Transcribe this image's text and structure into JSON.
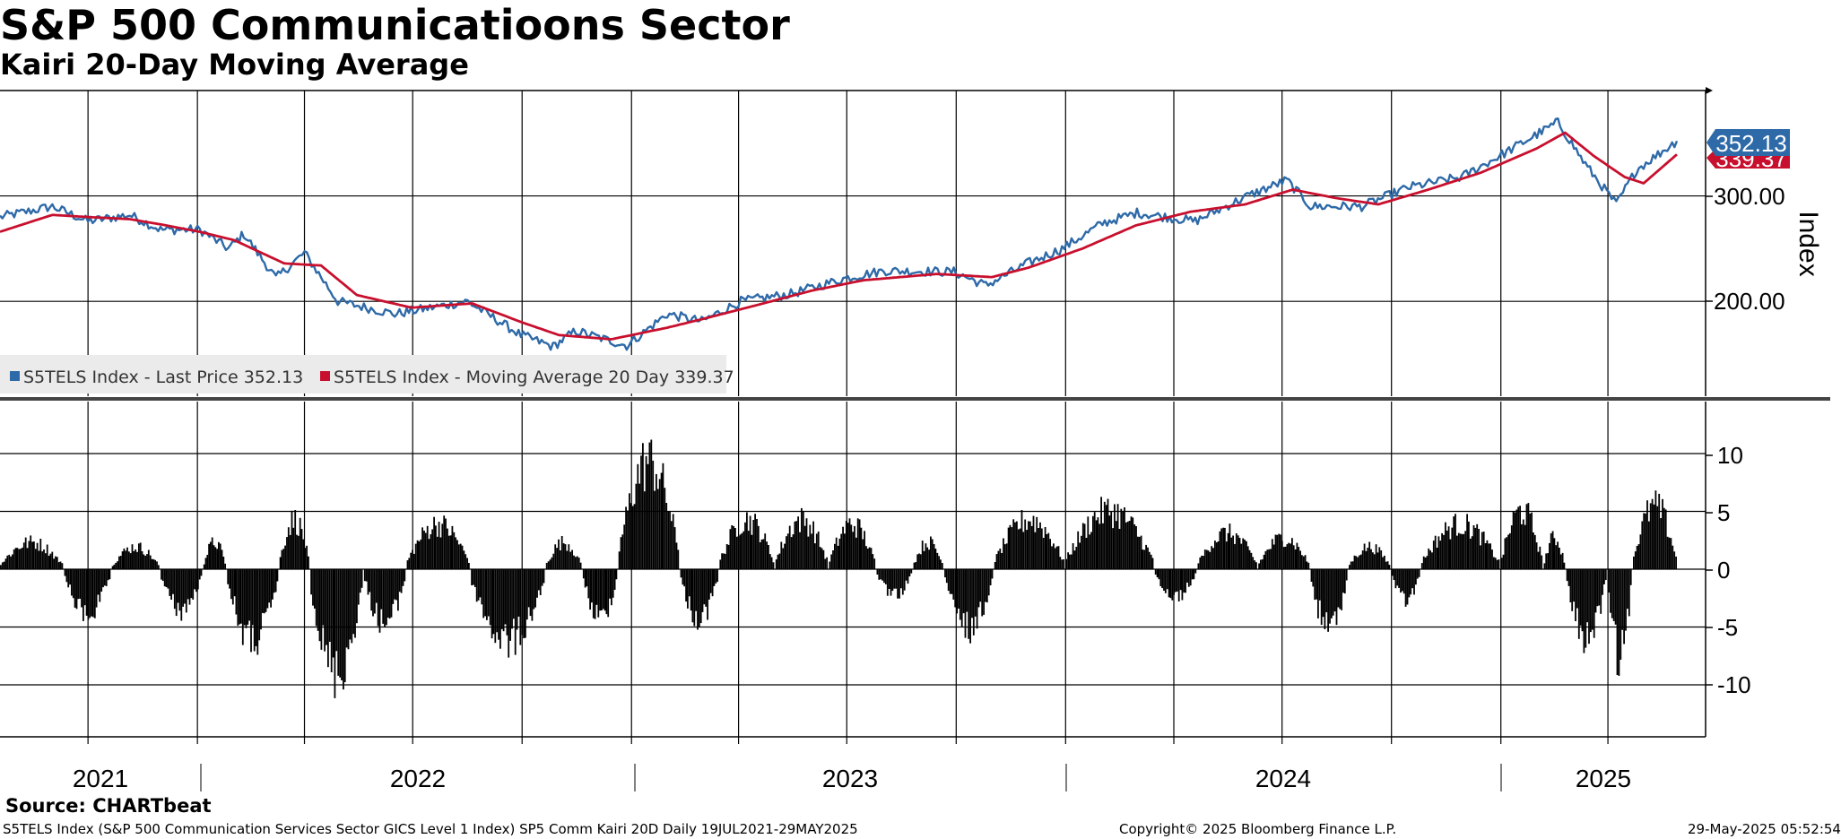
{
  "header": {
    "title": "S&P 500 Communicatioons Sector",
    "subtitle": "Kairi 20-Day Moving Average"
  },
  "footer": {
    "source": "Source: CHARTbeat",
    "description": "S5TELS Index (S&P 500 Communication Services Sector GICS Level 1 Index) SP5 Comm Kairi 20D  Daily 19JUL2021-29MAY2025",
    "copyright": "Copyright© 2025 Bloomberg Finance L.P.",
    "timestamp": "29-May-2025 05:52:54"
  },
  "colors": {
    "price": "#2e6aa8",
    "ma": "#c8102e",
    "bars": "#000000",
    "grid": "#000000"
  },
  "chart_data": [
    {
      "type": "line",
      "panel": "top",
      "ylabel": "Index",
      "ylim": [
        110,
        400
      ],
      "y_ticks": [
        "200.00",
        "300.00"
      ],
      "y_tick_values": [
        200,
        300
      ],
      "x_years": [
        "2021",
        "2022",
        "2023",
        "2024",
        "2025"
      ],
      "x_range": [
        "2021-07-19",
        "2025-05-29"
      ],
      "legend": {
        "price_label": "S5TELS Index - Last Price 352.13",
        "ma_label": "S5TELS Index - Moving Average 20 Day 339.37"
      },
      "last_values": {
        "price": "352.13",
        "ma": "339.37"
      },
      "series": [
        {
          "name": "S5TELS Index - Last Price",
          "color": "#2e6aa8",
          "points": [
            [
              "2021-07-19",
              280
            ],
            [
              "2021-09-01",
              290
            ],
            [
              "2021-10-01",
              276
            ],
            [
              "2021-11-05",
              282
            ],
            [
              "2021-12-01",
              268
            ],
            [
              "2022-01-03",
              268
            ],
            [
              "2022-01-27",
              250
            ],
            [
              "2022-02-09",
              264
            ],
            [
              "2022-03-08",
              222
            ],
            [
              "2022-04-01",
              246
            ],
            [
              "2022-04-29",
              200
            ],
            [
              "2022-06-16",
              188
            ],
            [
              "2022-08-16",
              200
            ],
            [
              "2022-09-30",
              168
            ],
            [
              "2022-10-27",
              157
            ],
            [
              "2022-11-15",
              172
            ],
            [
              "2022-12-28",
              158
            ],
            [
              "2023-01-31",
              188
            ],
            [
              "2023-03-01",
              181
            ],
            [
              "2023-04-03",
              200
            ],
            [
              "2023-05-15",
              207
            ],
            [
              "2023-06-30",
              222
            ],
            [
              "2023-08-01",
              229
            ],
            [
              "2023-09-29",
              228
            ],
            [
              "2023-10-26",
              215
            ],
            [
              "2023-11-30",
              236
            ],
            [
              "2023-12-29",
              250
            ],
            [
              "2024-02-01",
              274
            ],
            [
              "2024-03-01",
              284
            ],
            [
              "2024-04-19",
              276
            ],
            [
              "2024-05-31",
              299
            ],
            [
              "2024-07-05",
              315
            ],
            [
              "2024-07-25",
              290
            ],
            [
              "2024-09-06",
              290
            ],
            [
              "2024-10-15",
              308
            ],
            [
              "2024-11-29",
              318
            ],
            [
              "2024-12-31",
              338
            ],
            [
              "2025-02-18",
              370
            ],
            [
              "2025-03-13",
              330
            ],
            [
              "2025-04-08",
              292
            ],
            [
              "2025-04-25",
              325
            ],
            [
              "2025-05-29",
              352.13
            ]
          ]
        },
        {
          "name": "S5TELS Index - Moving Average 20 Day",
          "color": "#c8102e",
          "points": [
            [
              "2021-07-19",
              266
            ],
            [
              "2021-09-01",
              282
            ],
            [
              "2021-10-01",
              280
            ],
            [
              "2021-11-05",
              278
            ],
            [
              "2021-12-01",
              273
            ],
            [
              "2022-01-03",
              266
            ],
            [
              "2022-02-01",
              258
            ],
            [
              "2022-03-15",
              236
            ],
            [
              "2022-04-15",
              234
            ],
            [
              "2022-05-15",
              206
            ],
            [
              "2022-06-30",
              194
            ],
            [
              "2022-08-20",
              198
            ],
            [
              "2022-10-01",
              180
            ],
            [
              "2022-11-01",
              168
            ],
            [
              "2022-12-15",
              164
            ],
            [
              "2023-01-31",
              175
            ],
            [
              "2023-03-01",
              183
            ],
            [
              "2023-04-15",
              196
            ],
            [
              "2023-06-01",
              210
            ],
            [
              "2023-07-15",
              220
            ],
            [
              "2023-09-15",
              226
            ],
            [
              "2023-10-31",
              223
            ],
            [
              "2023-12-01",
              232
            ],
            [
              "2024-01-15",
              250
            ],
            [
              "2024-02-29",
              272
            ],
            [
              "2024-04-15",
              285
            ],
            [
              "2024-05-31",
              292
            ],
            [
              "2024-07-10",
              306
            ],
            [
              "2024-08-15",
              298
            ],
            [
              "2024-09-20",
              292
            ],
            [
              "2024-11-01",
              306
            ],
            [
              "2024-12-15",
              322
            ],
            [
              "2025-01-31",
              345
            ],
            [
              "2025-02-24",
              360
            ],
            [
              "2025-03-20",
              338
            ],
            [
              "2025-04-15",
              318
            ],
            [
              "2025-05-01",
              312
            ],
            [
              "2025-05-29",
              339.37
            ]
          ]
        }
      ]
    },
    {
      "type": "bar",
      "panel": "bottom",
      "name": "SP5 Comm Kairi 20D",
      "ylim": [
        -14.5,
        14.5
      ],
      "y_ticks": [
        "10",
        "5",
        "0",
        "-5",
        "-10"
      ],
      "y_tick_values": [
        10,
        5,
        0,
        -5,
        -10
      ],
      "segments": [
        [
          "2021-07-19",
          "2021-09-10",
          3.0
        ],
        [
          "2021-09-11",
          "2021-10-20",
          -5.0
        ],
        [
          "2021-10-21",
          "2021-11-30",
          2.5
        ],
        [
          "2021-12-01",
          "2022-01-05",
          -4.5
        ],
        [
          "2022-01-06",
          "2022-01-25",
          3.0
        ],
        [
          "2022-01-26",
          "2022-03-10",
          -8.0
        ],
        [
          "2022-03-11",
          "2022-04-05",
          5.5
        ],
        [
          "2022-04-06",
          "2022-05-20",
          -11.5
        ],
        [
          "2022-05-21",
          "2022-06-25",
          -6.0
        ],
        [
          "2022-06-26",
          "2022-08-18",
          5.0
        ],
        [
          "2022-08-19",
          "2022-10-20",
          -8.0
        ],
        [
          "2022-10-21",
          "2022-11-20",
          3.0
        ],
        [
          "2022-11-21",
          "2022-12-20",
          -5.5
        ],
        [
          "2022-12-21",
          "2023-02-10",
          12.0
        ],
        [
          "2023-02-11",
          "2023-03-15",
          -5.5
        ],
        [
          "2023-03-16",
          "2023-05-01",
          5.5
        ],
        [
          "2023-05-02",
          "2023-06-15",
          5.5
        ],
        [
          "2023-06-16",
          "2023-07-25",
          5.0
        ],
        [
          "2023-07-26",
          "2023-08-25",
          -3.0
        ],
        [
          "2023-08-26",
          "2023-09-20",
          3.0
        ],
        [
          "2023-09-21",
          "2023-11-01",
          -6.5
        ],
        [
          "2023-11-02",
          "2023-12-31",
          5.5
        ],
        [
          "2024-01-01",
          "2024-03-15",
          6.5
        ],
        [
          "2024-03-16",
          "2024-04-20",
          -3.0
        ],
        [
          "2024-04-21",
          "2024-06-10",
          4.0
        ],
        [
          "2024-06-11",
          "2024-07-24",
          3.5
        ],
        [
          "2024-07-25",
          "2024-08-25",
          -6.5
        ],
        [
          "2024-08-26",
          "2024-09-30",
          2.5
        ],
        [
          "2024-10-01",
          "2024-10-25",
          -3.5
        ],
        [
          "2024-10-26",
          "2024-12-31",
          5.0
        ],
        [
          "2025-01-01",
          "2025-02-05",
          6.5
        ],
        [
          "2025-02-06",
          "2025-02-24",
          3.5
        ],
        [
          "2025-02-25",
          "2025-03-31",
          -7.5
        ],
        [
          "2025-04-01",
          "2025-04-21",
          -10.0
        ],
        [
          "2025-04-22",
          "2025-05-29",
          7.0
        ]
      ]
    }
  ]
}
